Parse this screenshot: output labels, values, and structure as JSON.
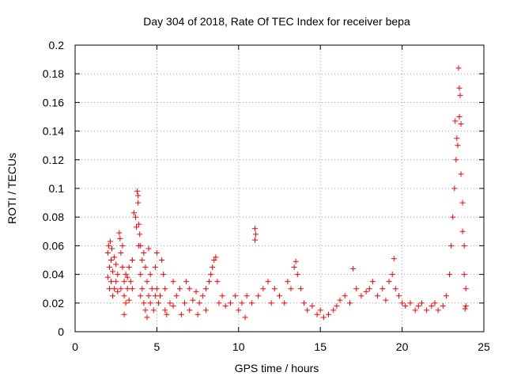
{
  "chart_data": {
    "type": "scatter",
    "title": "Day 304 of 2018, Rate Of TEC Index for receiver bepa",
    "xlabel": "GPS time / hours",
    "ylabel": "ROTI / TECUs",
    "xlim": [
      0,
      25
    ],
    "ylim": [
      0,
      0.2
    ],
    "xticks": [
      0,
      5,
      10,
      15,
      20,
      25
    ],
    "xtick_labels": [
      "0",
      "5",
      "10",
      "15",
      "20",
      "25"
    ],
    "yticks": [
      0,
      0.02,
      0.04,
      0.06,
      0.08,
      0.1,
      0.12,
      0.14,
      0.16,
      0.18,
      0.2
    ],
    "ytick_labels": [
      "0",
      "0.02",
      "0.04",
      "0.06",
      "0.08",
      "0.1",
      "0.12",
      "0.14",
      "0.16",
      "0.18",
      "0.2"
    ],
    "grid": true,
    "marker": "plus",
    "color": "#ff0000",
    "series": [
      {
        "name": "ROTI",
        "points": [
          [
            2.0,
            0.038
          ],
          [
            2.0,
            0.055
          ],
          [
            2.05,
            0.06
          ],
          [
            2.1,
            0.045
          ],
          [
            2.1,
            0.03
          ],
          [
            2.15,
            0.063
          ],
          [
            2.2,
            0.05
          ],
          [
            2.2,
            0.035
          ],
          [
            2.25,
            0.058
          ],
          [
            2.3,
            0.042
          ],
          [
            2.3,
            0.025
          ],
          [
            2.4,
            0.052
          ],
          [
            2.4,
            0.03
          ],
          [
            2.5,
            0.047
          ],
          [
            2.5,
            0.035
          ],
          [
            2.6,
            0.04
          ],
          [
            2.6,
            0.028
          ],
          [
            2.7,
            0.069
          ],
          [
            2.75,
            0.065
          ],
          [
            2.8,
            0.055
          ],
          [
            2.8,
            0.03
          ],
          [
            2.9,
            0.06
          ],
          [
            2.9,
            0.045
          ],
          [
            3.0,
            0.035
          ],
          [
            3.0,
            0.025
          ],
          [
            3.0,
            0.012
          ],
          [
            3.1,
            0.04
          ],
          [
            3.1,
            0.02
          ],
          [
            3.2,
            0.038
          ],
          [
            3.2,
            0.03
          ],
          [
            3.3,
            0.045
          ],
          [
            3.3,
            0.022
          ],
          [
            3.4,
            0.035
          ],
          [
            3.5,
            0.03
          ],
          [
            3.5,
            0.05
          ],
          [
            3.6,
            0.083
          ],
          [
            3.7,
            0.08
          ],
          [
            3.75,
            0.073
          ],
          [
            3.8,
            0.098
          ],
          [
            3.85,
            0.095
          ],
          [
            3.85,
            0.09
          ],
          [
            3.9,
            0.075
          ],
          [
            3.9,
            0.06
          ],
          [
            3.95,
            0.068
          ],
          [
            4.0,
            0.06
          ],
          [
            4.0,
            0.04
          ],
          [
            4.0,
            0.025
          ],
          [
            4.1,
            0.05
          ],
          [
            4.1,
            0.03
          ],
          [
            4.2,
            0.055
          ],
          [
            4.2,
            0.02
          ],
          [
            4.3,
            0.045
          ],
          [
            4.3,
            0.015
          ],
          [
            4.4,
            0.035
          ],
          [
            4.4,
            0.01
          ],
          [
            4.5,
            0.058
          ],
          [
            4.5,
            0.025
          ],
          [
            4.6,
            0.04
          ],
          [
            4.6,
            0.02
          ],
          [
            4.7,
            0.03
          ],
          [
            4.8,
            0.015
          ],
          [
            4.9,
            0.045
          ],
          [
            4.9,
            0.025
          ],
          [
            5.0,
            0.055
          ],
          [
            5.0,
            0.03
          ],
          [
            5.1,
            0.02
          ],
          [
            5.2,
            0.025
          ],
          [
            5.3,
            0.05
          ],
          [
            5.4,
            0.04
          ],
          [
            5.5,
            0.03
          ],
          [
            5.5,
            0.015
          ],
          [
            5.6,
            0.012
          ],
          [
            5.8,
            0.02
          ],
          [
            6.0,
            0.035
          ],
          [
            6.0,
            0.018
          ],
          [
            6.2,
            0.025
          ],
          [
            6.4,
            0.03
          ],
          [
            6.5,
            0.012
          ],
          [
            6.7,
            0.02
          ],
          [
            6.8,
            0.035
          ],
          [
            7.0,
            0.015
          ],
          [
            7.0,
            0.03
          ],
          [
            7.2,
            0.022
          ],
          [
            7.4,
            0.028
          ],
          [
            7.5,
            0.012
          ],
          [
            7.6,
            0.02
          ],
          [
            7.8,
            0.025
          ],
          [
            8.0,
            0.015
          ],
          [
            8.0,
            0.03
          ],
          [
            8.2,
            0.035
          ],
          [
            8.3,
            0.04
          ],
          [
            8.4,
            0.045
          ],
          [
            8.5,
            0.05
          ],
          [
            8.6,
            0.052
          ],
          [
            8.7,
            0.035
          ],
          [
            8.8,
            0.02
          ],
          [
            9.0,
            0.025
          ],
          [
            9.2,
            0.018
          ],
          [
            9.5,
            0.02
          ],
          [
            9.8,
            0.025
          ],
          [
            10.0,
            0.015
          ],
          [
            10.2,
            0.02
          ],
          [
            10.4,
            0.01
          ],
          [
            10.5,
            0.025
          ],
          [
            10.8,
            0.02
          ],
          [
            11.0,
            0.072
          ],
          [
            11.05,
            0.068
          ],
          [
            11.0,
            0.064
          ],
          [
            11.2,
            0.025
          ],
          [
            11.5,
            0.03
          ],
          [
            11.8,
            0.035
          ],
          [
            12.0,
            0.02
          ],
          [
            12.2,
            0.03
          ],
          [
            12.5,
            0.025
          ],
          [
            12.8,
            0.02
          ],
          [
            13.0,
            0.035
          ],
          [
            13.2,
            0.03
          ],
          [
            13.4,
            0.045
          ],
          [
            13.5,
            0.049
          ],
          [
            13.6,
            0.04
          ],
          [
            13.8,
            0.03
          ],
          [
            14.0,
            0.02
          ],
          [
            14.2,
            0.015
          ],
          [
            14.5,
            0.018
          ],
          [
            14.8,
            0.012
          ],
          [
            15.0,
            0.015
          ],
          [
            15.2,
            0.01
          ],
          [
            15.5,
            0.012
          ],
          [
            15.8,
            0.015
          ],
          [
            16.0,
            0.018
          ],
          [
            16.2,
            0.022
          ],
          [
            16.5,
            0.025
          ],
          [
            16.8,
            0.02
          ],
          [
            17.0,
            0.044
          ],
          [
            17.2,
            0.03
          ],
          [
            17.5,
            0.025
          ],
          [
            17.8,
            0.028
          ],
          [
            18.0,
            0.03
          ],
          [
            18.2,
            0.035
          ],
          [
            18.5,
            0.025
          ],
          [
            18.8,
            0.03
          ],
          [
            19.0,
            0.022
          ],
          [
            19.2,
            0.035
          ],
          [
            19.4,
            0.04
          ],
          [
            19.5,
            0.051
          ],
          [
            19.6,
            0.03
          ],
          [
            19.8,
            0.025
          ],
          [
            20.0,
            0.02
          ],
          [
            20.2,
            0.018
          ],
          [
            20.5,
            0.02
          ],
          [
            20.8,
            0.015
          ],
          [
            21.0,
            0.018
          ],
          [
            21.2,
            0.02
          ],
          [
            21.5,
            0.015
          ],
          [
            21.8,
            0.018
          ],
          [
            22.0,
            0.02
          ],
          [
            22.2,
            0.015
          ],
          [
            22.5,
            0.018
          ],
          [
            22.7,
            0.025
          ],
          [
            22.9,
            0.04
          ],
          [
            23.0,
            0.06
          ],
          [
            23.1,
            0.08
          ],
          [
            23.2,
            0.1
          ],
          [
            23.25,
            0.147
          ],
          [
            23.3,
            0.12
          ],
          [
            23.35,
            0.135
          ],
          [
            23.4,
            0.13
          ],
          [
            23.45,
            0.184
          ],
          [
            23.5,
            0.17
          ],
          [
            23.55,
            0.165
          ],
          [
            23.5,
            0.15
          ],
          [
            23.6,
            0.145
          ],
          [
            23.6,
            0.11
          ],
          [
            23.7,
            0.09
          ],
          [
            23.7,
            0.07
          ],
          [
            23.8,
            0.06
          ],
          [
            23.8,
            0.04
          ],
          [
            23.9,
            0.03
          ],
          [
            23.9,
            0.018
          ],
          [
            23.85,
            0.016
          ]
        ]
      }
    ]
  }
}
